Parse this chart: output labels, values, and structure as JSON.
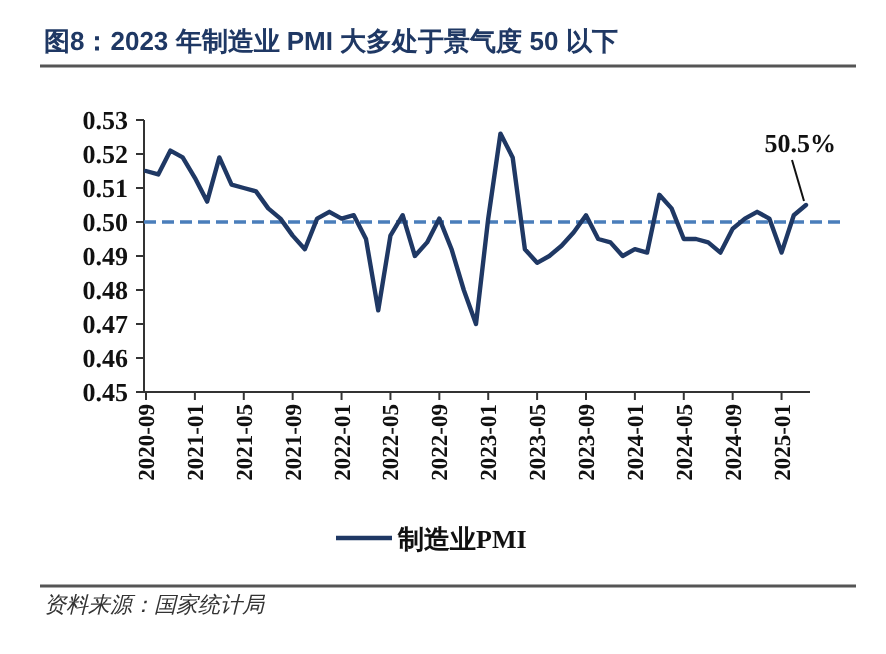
{
  "chart_data": {
    "type": "line",
    "title": "图8：2023 年制造业 PMI 大多处于景气度 50 以下",
    "categories": [
      "2020-09",
      null,
      null,
      null,
      "2021-01",
      null,
      null,
      null,
      "2021-05",
      null,
      null,
      null,
      "2021-09",
      null,
      null,
      null,
      "2022-01",
      null,
      null,
      null,
      "2022-05",
      null,
      null,
      null,
      "2022-09",
      null,
      null,
      null,
      "2023-01",
      null,
      null,
      null,
      "2023-05",
      null,
      null,
      null,
      "2023-09",
      null,
      null,
      null,
      "2024-01",
      null,
      null,
      null,
      "2024-05",
      null,
      null,
      null,
      "2024-09",
      null,
      null,
      null,
      "2025-01",
      null,
      null
    ],
    "series": [
      {
        "name": "制造业PMI",
        "color": "#1f3864",
        "values": [
          0.515,
          0.514,
          0.521,
          0.519,
          0.513,
          0.506,
          0.519,
          0.511,
          0.51,
          0.509,
          0.504,
          0.501,
          0.496,
          0.492,
          0.501,
          0.503,
          0.501,
          0.502,
          0.495,
          0.474,
          0.496,
          0.502,
          0.49,
          0.494,
          0.501,
          0.492,
          0.48,
          0.47,
          0.501,
          0.526,
          0.519,
          0.492,
          0.488,
          0.49,
          0.493,
          0.497,
          0.502,
          0.495,
          0.494,
          0.49,
          0.492,
          0.491,
          0.508,
          0.504,
          0.495,
          0.495,
          0.494,
          0.491,
          0.498,
          0.501,
          0.503,
          0.501,
          0.491,
          0.502,
          0.505
        ]
      }
    ],
    "ylim": [
      0.45,
      0.53
    ],
    "yticks": [
      0.45,
      0.46,
      0.47,
      0.48,
      0.49,
      {
        "value": 0.5,
        "label": "0.50"
      },
      0.51,
      0.52,
      0.53
    ],
    "ref_lines": [
      {
        "axis": "y",
        "value": 0.5,
        "color": "#4a7ebb",
        "line_style": "dashed"
      }
    ],
    "annotations": [
      {
        "text": "50.5%",
        "y": 0.505
      },
      "资料来源：国家统计局"
    ],
    "legend": "bottom",
    "grid": false,
    "marker": "none",
    "line_style": "solid"
  }
}
